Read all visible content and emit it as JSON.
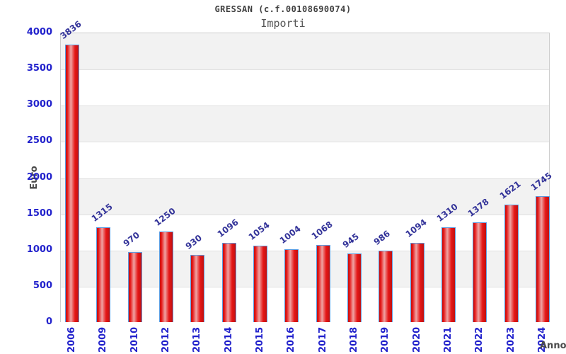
{
  "chart_data": {
    "type": "bar",
    "title": "GRESSAN (c.f.00108690074)",
    "subtitle": "Importi",
    "xlabel": "Anno",
    "ylabel": "Euro",
    "categories": [
      "2006",
      "2009",
      "2010",
      "2012",
      "2013",
      "2014",
      "2015",
      "2016",
      "2017",
      "2018",
      "2019",
      "2020",
      "2021",
      "2022",
      "2023",
      "2024"
    ],
    "values": [
      3836,
      1315,
      970,
      1250,
      930,
      1096,
      1054,
      1004,
      1068,
      945,
      986,
      1094,
      1310,
      1378,
      1621,
      1745
    ],
    "ylim": [
      0,
      4000
    ],
    "yticks": [
      0,
      500,
      1000,
      1500,
      2000,
      2500,
      3000,
      3500,
      4000
    ],
    "grid": true,
    "legend": false,
    "plot_background": "alternating horizontal bands",
    "colors": {
      "bar_red": "#e51717",
      "bar_red_dark": "#c01010",
      "bar_highlight": "#efa3a3",
      "bar_border": "#5e9ce0",
      "tick_label": "#2222cc",
      "value_label": "#333399",
      "band_gray": "#f2f2f2",
      "gridline": "#e0e0e0",
      "plot_border": "#cccccc",
      "axis_title": "#4a4a4a"
    }
  }
}
